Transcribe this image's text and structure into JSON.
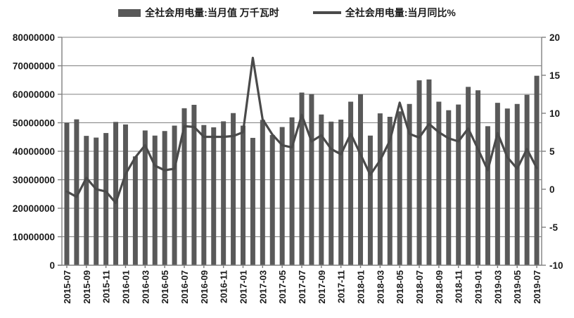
{
  "legend": {
    "bar_label": "全社会用电量:当月值 万千瓦时",
    "line_label": "全社会用电量:当月同比%"
  },
  "chart_data": {
    "type": "bar+line combo",
    "title": "",
    "xlabel": "",
    "ylabel_left": "",
    "ylabel_right": "",
    "grid": true,
    "legend_position": "top-center",
    "months": [
      "2015-07",
      "2015-08",
      "2015-09",
      "2015-10",
      "2015-11",
      "2015-12",
      "2016-01",
      "2016-02",
      "2016-03",
      "2016-04",
      "2016-05",
      "2016-06",
      "2016-07",
      "2016-08",
      "2016-09",
      "2016-10",
      "2016-11",
      "2016-12",
      "2017-01",
      "2017-02",
      "2017-03",
      "2017-04",
      "2017-05",
      "2017-06",
      "2017-07",
      "2017-08",
      "2017-09",
      "2017-10",
      "2017-11",
      "2017-12",
      "2018-01",
      "2018-02",
      "2018-03",
      "2018-04",
      "2018-05",
      "2018-06",
      "2018-07",
      "2018-08",
      "2018-09",
      "2018-10",
      "2018-11",
      "2018-12",
      "2019-01",
      "2019-02",
      "2019-03",
      "2019-04",
      "2019-05",
      "2019-06",
      "2019-07"
    ],
    "x_tick_labels": [
      "2015-07",
      "2015-09",
      "2015-11",
      "2016-01",
      "2016-03",
      "2016-05",
      "2016-07",
      "2016-09",
      "2016-11",
      "2017-01",
      "2017-03",
      "2017-05",
      "2017-07",
      "2017-09",
      "2017-11",
      "2018-01",
      "2018-03",
      "2018-05",
      "2018-07",
      "2018-09",
      "2018-11",
      "2019-01",
      "2019-03",
      "2019-05",
      "2019-07"
    ],
    "series": [
      {
        "name": "全社会用电量:当月值 万千瓦时",
        "type": "bar",
        "axis": "left",
        "values": [
          50000000,
          51200000,
          45400000,
          44800000,
          46400000,
          50300000,
          49400000,
          38200000,
          47300000,
          45500000,
          47100000,
          49000000,
          55100000,
          56300000,
          49200000,
          48400000,
          50500000,
          53400000,
          49000000,
          44700000,
          51000000,
          45700000,
          48500000,
          51900000,
          60600000,
          60100000,
          52900000,
          50400000,
          51100000,
          57400000,
          60000000,
          45500000,
          53300000,
          52100000,
          54000000,
          56600000,
          64900000,
          65200000,
          57400000,
          54400000,
          56400000,
          62600000,
          61400000,
          48800000,
          57000000,
          55000000,
          56600000,
          59800000,
          66500000
        ]
      },
      {
        "name": "全社会用电量:当月同比%",
        "type": "line",
        "axis": "right",
        "values": [
          -0.3,
          -1.0,
          1.5,
          0.0,
          -0.3,
          -1.8,
          2.0,
          4.2,
          5.8,
          3.1,
          2.5,
          2.7,
          8.3,
          8.2,
          6.9,
          6.9,
          6.9,
          7.0,
          7.5,
          17.3,
          9.2,
          7.2,
          5.8,
          5.5,
          9.8,
          6.3,
          7.1,
          5.3,
          4.6,
          7.3,
          4.6,
          1.9,
          3.8,
          6.4,
          11.4,
          7.3,
          6.8,
          8.6,
          7.5,
          6.7,
          6.3,
          8.0,
          5.3,
          2.5,
          7.4,
          4.2,
          2.7,
          5.3,
          2.8
        ]
      }
    ],
    "left_axis": {
      "min": 0,
      "max": 80000000,
      "step": 10000000,
      "tick_labels": [
        "0",
        "10000000",
        "20000000",
        "30000000",
        "40000000",
        "50000000",
        "60000000",
        "70000000",
        "80000000"
      ]
    },
    "right_axis": {
      "min": -10,
      "max": 20,
      "step": 5,
      "tick_labels": [
        "-10",
        "-5",
        "0",
        "5",
        "10",
        "15",
        "20"
      ]
    },
    "colors": {
      "bar": "#595959",
      "line": "#4a4a4a",
      "grid": "#808080",
      "axis": "#808080",
      "text": "#1a1a1a",
      "background": "#ffffff"
    }
  }
}
